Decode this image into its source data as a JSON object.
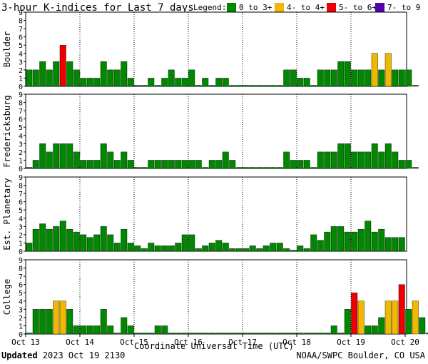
{
  "title": "3-hour K-indices for Last 7 days",
  "legend": {
    "label": "Legend:",
    "items": [
      {
        "label": "0 to 3+",
        "color": "#008800"
      },
      {
        "label": "4- to 4+",
        "color": "#f0b800"
      },
      {
        "label": "5- to 6+",
        "color": "#ee0000"
      },
      {
        "label": "7- to 9",
        "color": "#5500aa"
      }
    ]
  },
  "x_axis": {
    "label": "Coordinate Universal Time (UTC)",
    "ticks": [
      "Oct 13",
      "Oct 14",
      "Oct 15",
      "Oct 16",
      "Oct 17",
      "Oct 18",
      "Oct 19",
      "Oct 20"
    ]
  },
  "footer": {
    "updated_label": "Updated",
    "updated_value": "2023 Oct 19 2130",
    "source": "NOAA/SWPC Boulder, CO USA"
  },
  "chart_data": [
    {
      "type": "bar",
      "title": "Boulder",
      "ylim": [
        0,
        9
      ],
      "yticks": [
        0,
        1,
        2,
        3,
        4,
        5,
        6,
        7,
        8,
        9
      ],
      "values": [
        2,
        2,
        3,
        2,
        3,
        5,
        3,
        2,
        1,
        1,
        1,
        3,
        2,
        2,
        3,
        1,
        0,
        0,
        1,
        0,
        1,
        2,
        1,
        1,
        2,
        0,
        1,
        0,
        1,
        1,
        0,
        0,
        0,
        0,
        0,
        0,
        0,
        0,
        2,
        2,
        1,
        1,
        0,
        2,
        2,
        2,
        3,
        3,
        2,
        2,
        2,
        4,
        2,
        4,
        2,
        2,
        2,
        0,
        null
      ]
    },
    {
      "type": "bar",
      "title": "Fredericksburg",
      "ylim": [
        0,
        9
      ],
      "yticks": [
        0,
        1,
        2,
        3,
        4,
        5,
        6,
        7,
        8,
        9
      ],
      "values": [
        0,
        1,
        3,
        2,
        3,
        3,
        3,
        2,
        1,
        1,
        1,
        3,
        2,
        1,
        2,
        1,
        0,
        0,
        1,
        1,
        1,
        1,
        1,
        1,
        1,
        1,
        0,
        1,
        1,
        2,
        1,
        0,
        0,
        0,
        0,
        0,
        0,
        0,
        2,
        1,
        1,
        1,
        0,
        2,
        2,
        2,
        3,
        3,
        2,
        2,
        2,
        3,
        2,
        3,
        2,
        1,
        1,
        0,
        null
      ]
    },
    {
      "type": "bar",
      "title": "Est. Planetary",
      "ylim": [
        0,
        9
      ],
      "yticks": [
        0,
        1,
        2,
        3,
        4,
        5,
        6,
        7,
        8,
        9
      ],
      "values": [
        1,
        2.67,
        3.33,
        2.67,
        3,
        3.67,
        2.67,
        2.33,
        2,
        1.67,
        2,
        3,
        2,
        1,
        2.67,
        1,
        0.67,
        0.33,
        1,
        0.67,
        0.67,
        0.67,
        1,
        2,
        2,
        0.33,
        0.67,
        1,
        1.33,
        1,
        0.33,
        0.33,
        0.33,
        0.67,
        0.33,
        0.67,
        1,
        1,
        0.33,
        0,
        0.67,
        0.33,
        2,
        1.33,
        2.33,
        3,
        3,
        2.33,
        2.33,
        2.67,
        3.67,
        2.33,
        2.67,
        1.67,
        1.67,
        1.67,
        null,
        null
      ]
    },
    {
      "type": "bar",
      "title": "College",
      "ylim": [
        0,
        9
      ],
      "yticks": [
        0,
        1,
        2,
        3,
        4,
        5,
        6,
        7,
        8,
        9
      ],
      "values": [
        0,
        3,
        3,
        3,
        4,
        4,
        3,
        1,
        1,
        1,
        1,
        3,
        1,
        0,
        2,
        1,
        0,
        0,
        0,
        1,
        1,
        0,
        0,
        0,
        0,
        0,
        0,
        0,
        0,
        0,
        0,
        0,
        0,
        0,
        0,
        0,
        0,
        0,
        0,
        0,
        0,
        0,
        0,
        0,
        0,
        1,
        0,
        3,
        5,
        4,
        1,
        1,
        2,
        4,
        4,
        6,
        3,
        4,
        2,
        0
      ]
    }
  ]
}
